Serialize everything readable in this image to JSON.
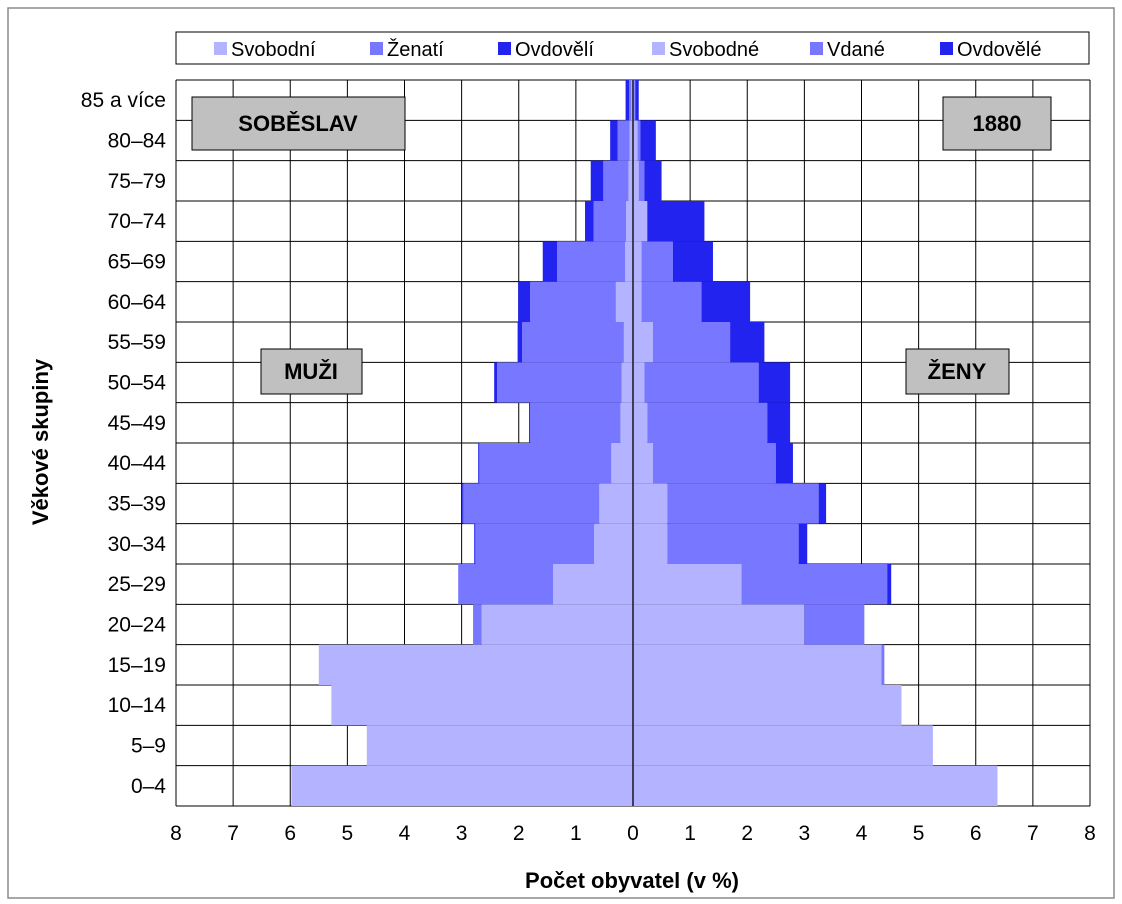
{
  "chart_data": {
    "type": "bar",
    "orientation": "horizontal-pyramid",
    "categories": [
      "0–4",
      "5–9",
      "10–14",
      "15–19",
      "20–24",
      "25–29",
      "30–34",
      "35–39",
      "40–44",
      "45–49",
      "50–54",
      "55–59",
      "60–64",
      "65–69",
      "70–74",
      "75–79",
      "80–84",
      "85 a více"
    ],
    "men": {
      "label": "MUŽI",
      "series": [
        {
          "name": "Svobodní",
          "color": "#b3b3ff",
          "values": [
            5.98,
            4.66,
            5.28,
            5.5,
            2.65,
            1.4,
            0.68,
            0.59,
            0.38,
            0.22,
            0.2,
            0.16,
            0.3,
            0.14,
            0.12,
            0.08,
            0.06,
            0.03
          ]
        },
        {
          "name": "Ženatí",
          "color": "#7777ff",
          "values": [
            0,
            0,
            0,
            0,
            0.15,
            1.66,
            2.08,
            2.38,
            2.31,
            1.58,
            2.18,
            1.78,
            1.5,
            1.19,
            0.57,
            0.44,
            0.21,
            0.04
          ]
        },
        {
          "name": "Ovdovělí",
          "color": "#2323f0",
          "values": [
            0,
            0,
            0,
            0,
            0,
            0,
            0.02,
            0.02,
            0.02,
            0.02,
            0.05,
            0.08,
            0.21,
            0.25,
            0.15,
            0.22,
            0.13,
            0.06
          ]
        }
      ]
    },
    "women": {
      "label": "ŽENY",
      "series": [
        {
          "name": "Svobodné",
          "color": "#b3b3ff",
          "values": [
            6.38,
            5.25,
            4.7,
            4.35,
            3.0,
            1.9,
            0.6,
            0.6,
            0.35,
            0.25,
            0.2,
            0.35,
            0.15,
            0.15,
            0.25,
            0.1,
            0.08,
            0.02
          ]
        },
        {
          "name": "Vdané",
          "color": "#7777ff",
          "values": [
            0,
            0,
            0,
            0.05,
            1.05,
            2.55,
            2.3,
            2.65,
            2.15,
            2.1,
            2.0,
            1.35,
            1.05,
            0.55,
            0.0,
            0.1,
            0.05,
            0.02
          ]
        },
        {
          "name": "Ovdovělé",
          "color": "#2323f0",
          "values": [
            0,
            0,
            0,
            0,
            0,
            0.07,
            0.15,
            0.13,
            0.3,
            0.4,
            0.55,
            0.6,
            0.85,
            0.7,
            1.0,
            0.3,
            0.27,
            0.06
          ]
        }
      ]
    },
    "place_label": "SOBĚSLAV",
    "year_label": "1880",
    "xlabel": "Počet obyvatel (v %)",
    "ylabel": "Věkové skupiny",
    "xlim": [
      -8,
      8
    ],
    "xticks": [
      "8",
      "7",
      "6",
      "5",
      "4",
      "3",
      "2",
      "1",
      "0",
      "1",
      "2",
      "3",
      "4",
      "5",
      "6",
      "7",
      "8"
    ],
    "grid": true,
    "legend": {
      "placement": "top",
      "entries": [
        {
          "label": "Svobodní",
          "color": "#b3b3ff"
        },
        {
          "label": "Ženatí",
          "color": "#7777ff"
        },
        {
          "label": "Ovdovělí",
          "color": "#2323f0"
        },
        {
          "label": "Svobodné",
          "color": "#b3b3ff"
        },
        {
          "label": "Vdané",
          "color": "#7777ff"
        },
        {
          "label": "Ovdovělé",
          "color": "#2323f0"
        }
      ]
    }
  }
}
